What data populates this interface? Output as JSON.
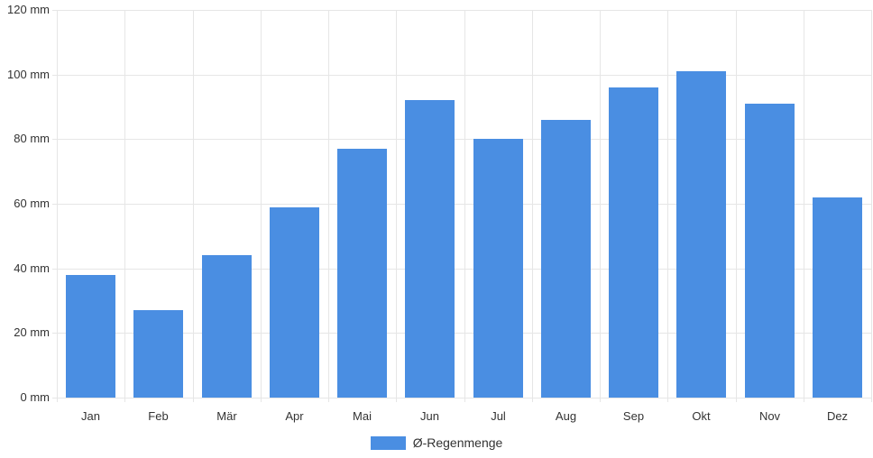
{
  "chart_data": {
    "type": "bar",
    "categories": [
      "Jan",
      "Feb",
      "Mär",
      "Apr",
      "Mai",
      "Jun",
      "Jul",
      "Aug",
      "Sep",
      "Okt",
      "Nov",
      "Dez"
    ],
    "series": [
      {
        "name": "Ø-Regenmenge",
        "values": [
          38,
          27,
          44,
          59,
          77,
          92,
          80,
          86,
          96,
          101,
          91,
          62
        ]
      }
    ],
    "title": "",
    "xlabel": "",
    "ylabel": "mm",
    "ylim": [
      0,
      120
    ],
    "ytick_step": 20,
    "ytick_labels": [
      "0 mm",
      "20 mm",
      "40 mm",
      "60 mm",
      "80 mm",
      "100 mm",
      "120 mm"
    ],
    "grid": true,
    "legend_position": "bottom"
  },
  "legend": {
    "label": "Ø-Regenmenge"
  },
  "colors": {
    "bar": "#4a8ee2",
    "grid": "#e6e6e6",
    "text": "#333333",
    "background": "#ffffff"
  }
}
